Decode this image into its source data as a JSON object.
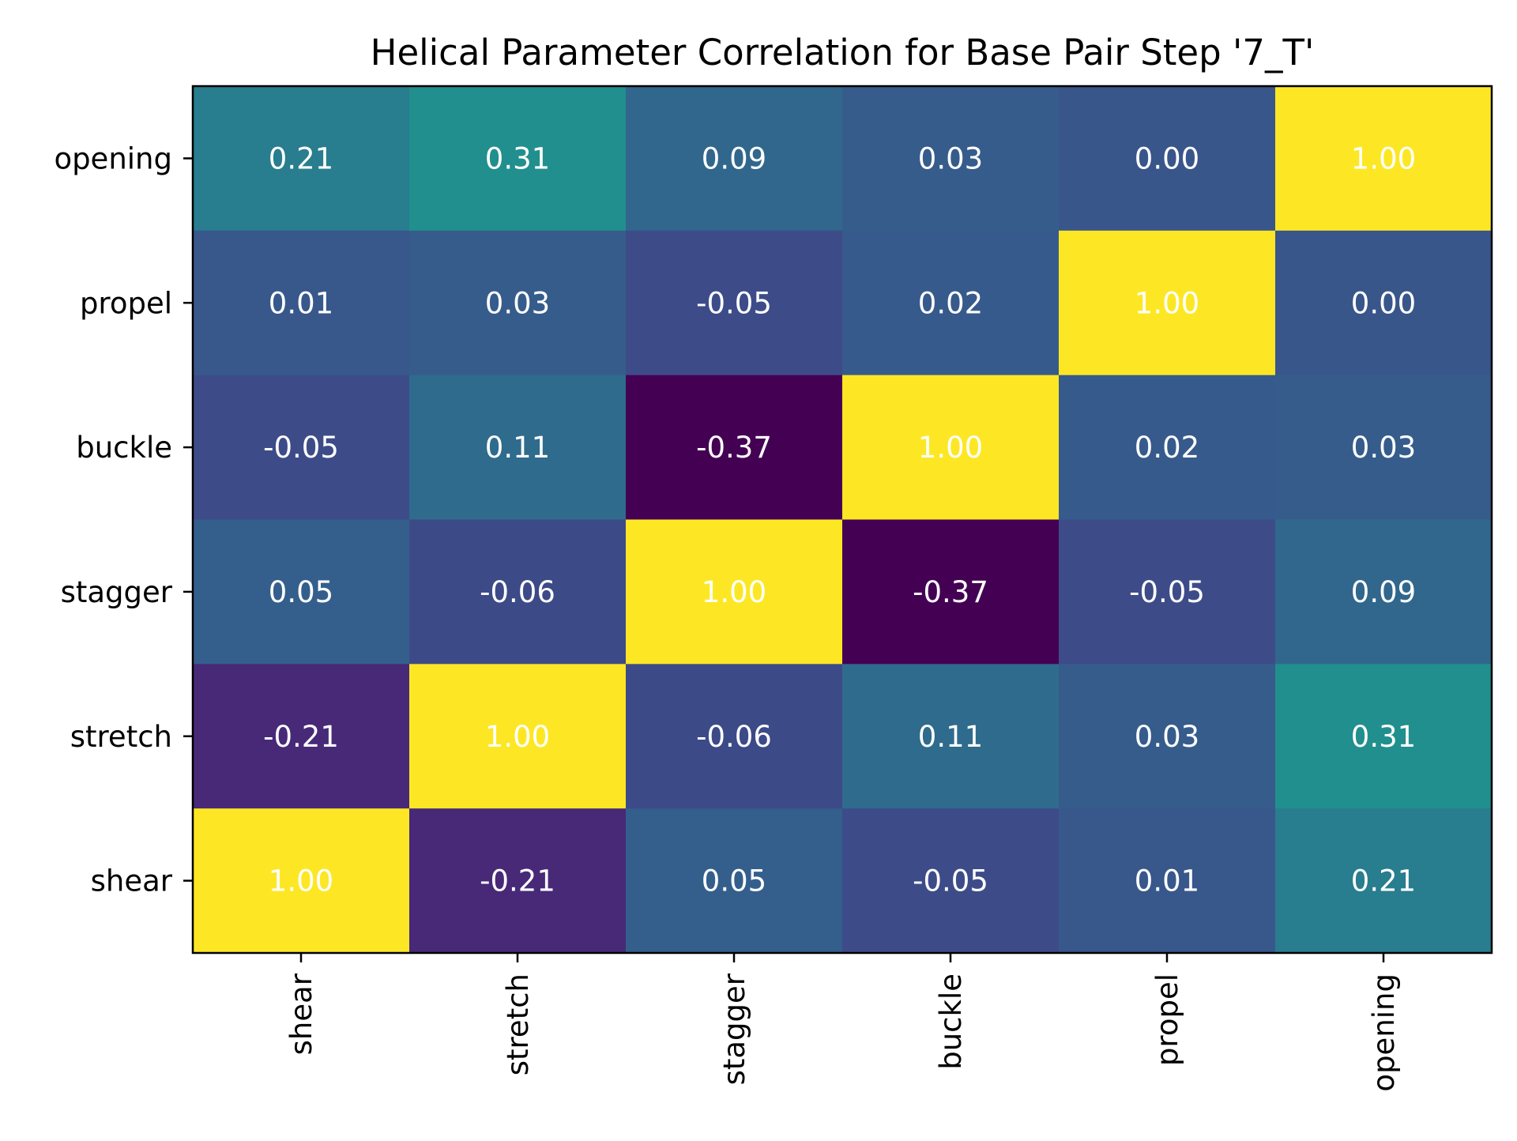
{
  "chart_data": {
    "type": "heatmap",
    "title": "Helical Parameter Correlation for Base Pair Step '7_T'",
    "xlabel": "",
    "ylabel": "",
    "x_categories": [
      "shear",
      "stretch",
      "stagger",
      "buckle",
      "propel",
      "opening"
    ],
    "y_categories_top_to_bottom": [
      "opening",
      "propel",
      "buckle",
      "stagger",
      "stretch",
      "shear"
    ],
    "values_top_to_bottom": [
      [
        0.21,
        0.31,
        0.09,
        0.03,
        0.0,
        1.0
      ],
      [
        0.01,
        0.03,
        -0.05,
        0.02,
        1.0,
        0.0
      ],
      [
        -0.05,
        0.11,
        -0.37,
        1.0,
        0.02,
        0.03
      ],
      [
        0.05,
        -0.06,
        1.0,
        -0.37,
        -0.05,
        0.09
      ],
      [
        -0.21,
        1.0,
        -0.06,
        0.11,
        0.03,
        0.31
      ],
      [
        1.0,
        -0.21,
        0.05,
        -0.05,
        0.01,
        0.21
      ]
    ],
    "value_format": "2 decimals",
    "colormap": "viridis",
    "color_range": [
      -0.37,
      1.0
    ],
    "x_tick_rotation": "vertical",
    "grid": false,
    "legend": "none",
    "annotation_color": "#ffffff"
  }
}
